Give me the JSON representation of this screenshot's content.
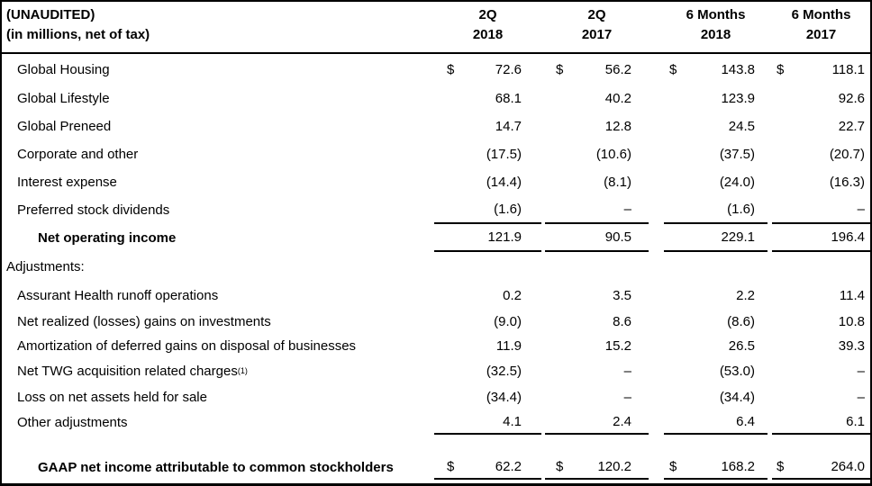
{
  "colors": {
    "border": "#000000",
    "text": "#000000",
    "background": "#ffffff"
  },
  "header": {
    "left_line1": "(UNAUDITED)",
    "left_line2": "(in millions, net of tax)",
    "columns": [
      {
        "period": "2Q",
        "year": "2018"
      },
      {
        "period": "2Q",
        "year": "2017"
      },
      {
        "period": "6 Months",
        "year": "2018"
      },
      {
        "period": "6 Months",
        "year": "2017"
      }
    ]
  },
  "rows": [
    {
      "label": "Global Housing",
      "indent": 1,
      "cur": [
        "$",
        "$",
        "$",
        "$"
      ],
      "values": [
        "72.6",
        "56.2",
        "143.8",
        "118.1"
      ]
    },
    {
      "label": "Global Lifestyle",
      "indent": 1,
      "values": [
        "68.1",
        "40.2",
        "123.9",
        "92.6"
      ]
    },
    {
      "label": "Global Preneed",
      "indent": 1,
      "values": [
        "14.7",
        "12.8",
        "24.5",
        "22.7"
      ]
    },
    {
      "label": "Corporate and other",
      "indent": 1,
      "values": [
        "(17.5)",
        "(10.6)",
        "(37.5)",
        "(20.7)"
      ]
    },
    {
      "label": "Interest expense",
      "indent": 1,
      "values": [
        "(14.4)",
        "(8.1)",
        "(24.0)",
        "(16.3)"
      ]
    },
    {
      "label": "Preferred stock dividends",
      "indent": 1,
      "rule_below": true,
      "values": [
        "(1.6)",
        "–",
        "(1.6)",
        "–"
      ]
    },
    {
      "label": "Net operating income",
      "indent": 2,
      "bold": true,
      "rule_below": true,
      "values": [
        "121.9",
        "90.5",
        "229.1",
        "196.4"
      ]
    },
    {
      "label": "Adjustments:",
      "indent": 0,
      "values": [
        "",
        "",
        "",
        ""
      ]
    },
    {
      "label": "Assurant Health runoff operations",
      "indent": 1,
      "values": [
        "0.2",
        "3.5",
        "2.2",
        "11.4"
      ]
    },
    {
      "label": "Net realized (losses) gains on investments",
      "indent": 1,
      "values": [
        "(9.0)",
        "8.6",
        "(8.6)",
        "10.8"
      ]
    },
    {
      "label": "Amortization of deferred gains on disposal of businesses",
      "indent": 1,
      "values": [
        "11.9",
        "15.2",
        "26.5",
        "39.3"
      ]
    },
    {
      "label": "Net TWG acquisition related charges",
      "label_sup": "(1)",
      "indent": 1,
      "values": [
        "(32.5)",
        "–",
        "(53.0)",
        "–"
      ]
    },
    {
      "label": "Loss on net assets held for sale",
      "indent": 1,
      "values": [
        "(34.4)",
        "–",
        "(34.4)",
        "–"
      ]
    },
    {
      "label": "Other adjustments",
      "indent": 1,
      "rule_below": true,
      "values": [
        "4.1",
        "2.4",
        "6.4",
        "6.1"
      ]
    },
    {
      "type": "spacer",
      "label": ""
    },
    {
      "label": "GAAP net income attributable to common stockholders",
      "indent": 2,
      "bold": true,
      "rule_below": true,
      "cur": [
        "$",
        "$",
        "$",
        "$"
      ],
      "values": [
        "62.2",
        "120.2",
        "168.2",
        "264.0"
      ]
    }
  ]
}
